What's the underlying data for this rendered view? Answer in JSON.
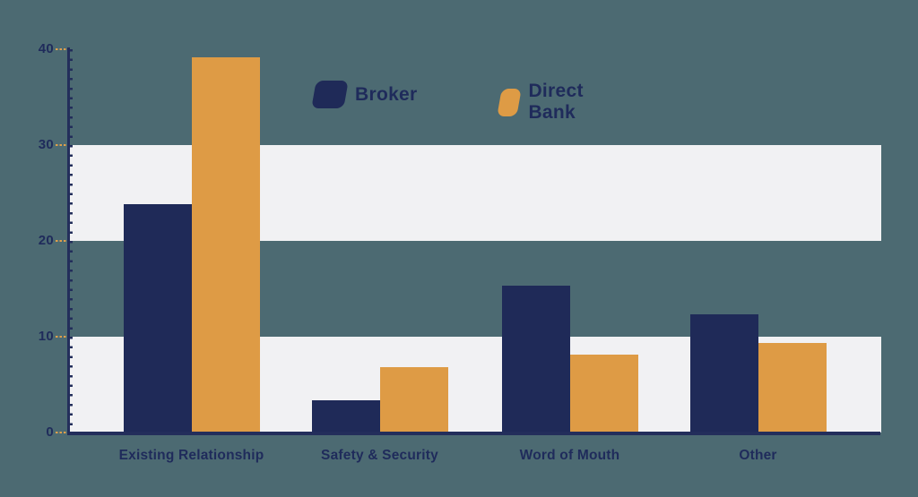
{
  "chart_data": {
    "type": "bar",
    "title": "",
    "xlabel": "",
    "ylabel": "",
    "categories": [
      "Existing Relationship",
      "Safety & Security",
      "Word of Mouth",
      "Other"
    ],
    "series": [
      {
        "name": "Broker",
        "color": "#1F2A58",
        "values": [
          23.8,
          3.4,
          15.3,
          12.3
        ]
      },
      {
        "name": "Direct Bank",
        "color": "#DE9B45",
        "values": [
          39.2,
          6.8,
          8.1,
          9.3
        ]
      }
    ],
    "ylim": [
      0,
      40
    ],
    "yticks": [
      0,
      10,
      20,
      30,
      40
    ],
    "ytick_labels": [
      "0",
      "10",
      "20",
      "30",
      "40"
    ],
    "grid": "alternating-horizontal-bands",
    "band_value_ranges": [
      [
        0,
        10
      ],
      [
        20,
        30
      ]
    ],
    "legend_position": "top-center",
    "colors": {
      "background": "#4C6A72",
      "band": "#F1F1F3",
      "axis": "#232E5B",
      "text": "#1F2B5B",
      "major_tick": "#DFA04C"
    }
  }
}
